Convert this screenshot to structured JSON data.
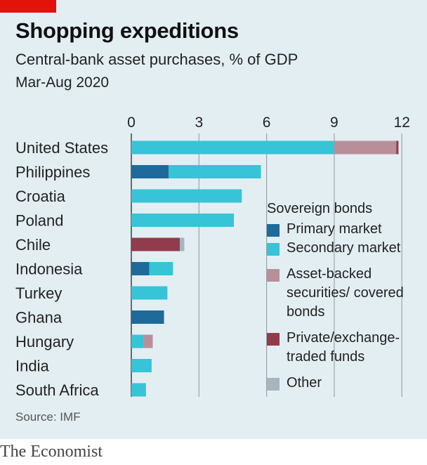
{
  "header": {
    "title": "Shopping expeditions",
    "subtitle": "Central-bank asset purchases, % of GDP",
    "period": "Mar-Aug 2020"
  },
  "footer": {
    "source": "Source: IMF",
    "brand": "The Economist"
  },
  "legend": {
    "heading": "Sovereign bonds",
    "items": [
      {
        "label": "Primary market",
        "color": "#1f6a9a"
      },
      {
        "label": "Secondary market",
        "color": "#36c4d6"
      },
      {
        "label": "Asset-backed securities/ covered bonds",
        "color": "#b88f99"
      },
      {
        "label": "Private/exchange-traded funds",
        "color": "#923b4c"
      },
      {
        "label": "Other",
        "color": "#a6b5bf"
      }
    ]
  },
  "colors": {
    "accent_red": "#e3120b",
    "background": "#e3eef3",
    "gridline": "#9aa5ab"
  },
  "chart_data": {
    "type": "bar",
    "orientation": "horizontal",
    "stacked": true,
    "xlim": [
      0,
      12
    ],
    "xticks": [
      0,
      3,
      6,
      9,
      12
    ],
    "categories": [
      "United States",
      "Philippines",
      "Croatia",
      "Poland",
      "Chile",
      "Indonesia",
      "Turkey",
      "Ghana",
      "Hungary",
      "India",
      "South Africa"
    ],
    "series": [
      {
        "name": "Primary market",
        "color": "#1f6a9a",
        "values": [
          0,
          1.65,
          0,
          0,
          0,
          0.8,
          0,
          1.45,
          0,
          0,
          0
        ]
      },
      {
        "name": "Secondary market",
        "color": "#36c4d6",
        "values": [
          9.0,
          4.1,
          4.9,
          4.55,
          0,
          1.05,
          1.6,
          0,
          0.55,
          0.9,
          0.65
        ]
      },
      {
        "name": "Asset-backed securities/ covered bonds",
        "color": "#b88f99",
        "values": [
          2.75,
          0,
          0,
          0,
          0,
          0,
          0,
          0,
          0.4,
          0,
          0
        ]
      },
      {
        "name": "Private/exchange-traded funds",
        "color": "#923b4c",
        "values": [
          0.1,
          0,
          0,
          0,
          2.15,
          0,
          0,
          0,
          0,
          0,
          0
        ]
      },
      {
        "name": "Other",
        "color": "#a6b5bf",
        "values": [
          0,
          0,
          0,
          0,
          0.2,
          0,
          0,
          0,
          0,
          0,
          0
        ]
      }
    ]
  }
}
